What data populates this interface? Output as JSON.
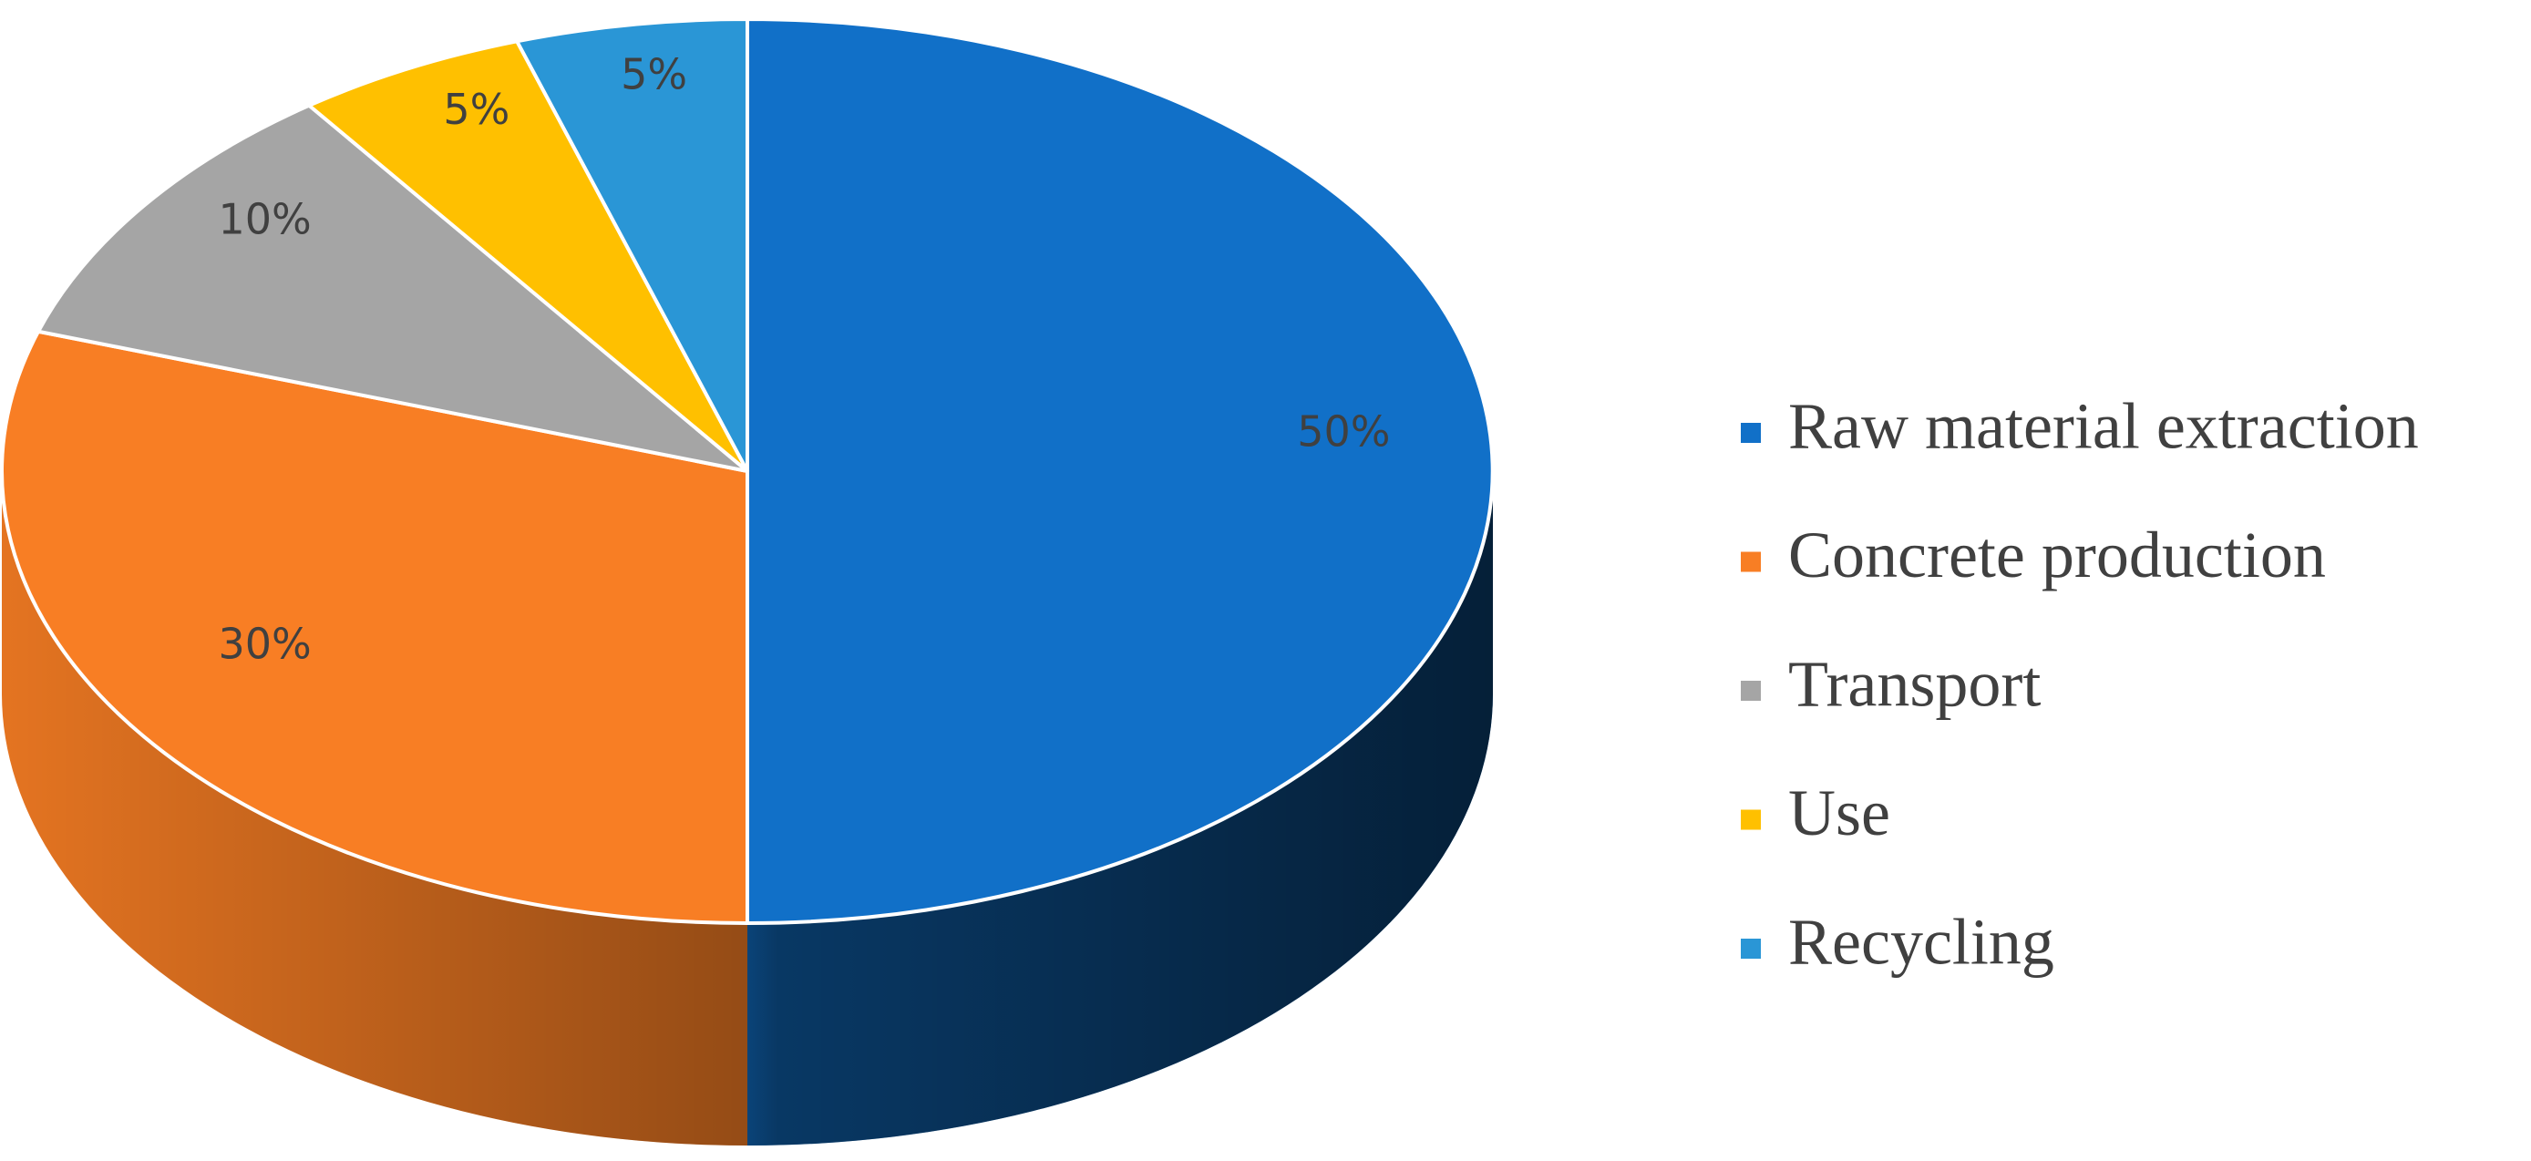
{
  "chart_data": {
    "type": "pie3d",
    "categories": [
      "Raw material extraction",
      "Concrete production",
      "Transport",
      "Use",
      "Recycling"
    ],
    "values": [
      50,
      30,
      10,
      5,
      5
    ],
    "value_labels": [
      "50%",
      "30%",
      "10%",
      "5%",
      "5%"
    ],
    "colors": [
      "#1170C8",
      "#F87E24",
      "#A5A5A5",
      "#FFC000",
      "#2A96D6"
    ],
    "legend": "right"
  }
}
